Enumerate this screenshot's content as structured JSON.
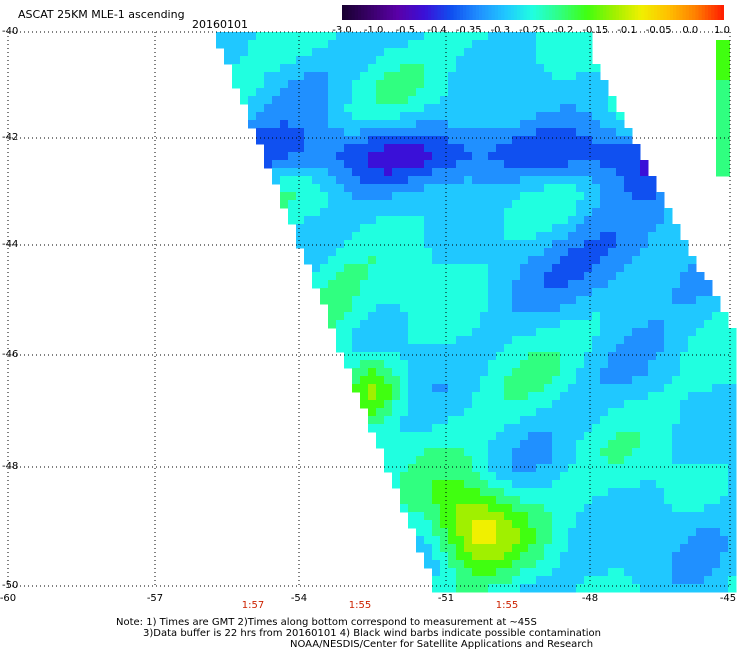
{
  "header": {
    "title": "ASCAT 25KM MLE-1 ascending",
    "date": "20160101"
  },
  "colorbar": {
    "labels": [
      "-3.0",
      "-1.0",
      "-0.5",
      "-0.4",
      "-0.35",
      "-0.3",
      "-0.25",
      "-0.2",
      "-0.15",
      "-0.1",
      "-0.05",
      "0.0",
      "1.0"
    ],
    "colors": [
      "#1a0033",
      "#3a006a",
      "#5a00a8",
      "#3a10d8",
      "#1050f0",
      "#2090ff",
      "#20c8ff",
      "#20ffe0",
      "#30ff80",
      "#40ff10",
      "#a0f000",
      "#f0f000",
      "#ffc000",
      "#ff8000",
      "#ff2000"
    ]
  },
  "map": {
    "lat_labels": [
      "-40",
      "-42",
      "-44",
      "-46",
      "-48",
      "-50"
    ],
    "lon_labels": [
      "-60",
      "-57",
      "-54",
      "-51",
      "-48",
      "-45"
    ],
    "pass_times": [
      "1:57",
      "1:55",
      "1:55"
    ]
  },
  "notes": {
    "line1": "Note: 1) Times are GMT 2)Times along bottom correspond to measurement at ~45S",
    "line2": "3)Data buffer is 22 hrs from 20160101 4) Black wind barbs indicate possible contamination",
    "line3": "NOAA/NESDIS/Center for Satellite Applications and Research"
  }
}
